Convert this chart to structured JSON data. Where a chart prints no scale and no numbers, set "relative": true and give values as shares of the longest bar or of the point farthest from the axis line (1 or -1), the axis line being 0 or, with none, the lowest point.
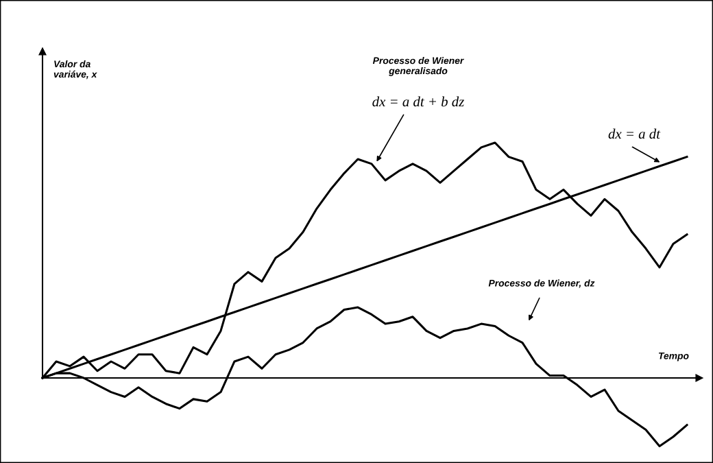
{
  "chart_data": {
    "type": "line",
    "relative": true,
    "xlabel": "Tempo",
    "categories": [
      null,
      null,
      null,
      null,
      null,
      null,
      null,
      null,
      null,
      null,
      null,
      null,
      null,
      null,
      null,
      null,
      null,
      null,
      null,
      null,
      null,
      null,
      null,
      null,
      null,
      null,
      null,
      null,
      null,
      null,
      null,
      null,
      null,
      null,
      null,
      null,
      null,
      null,
      null,
      null,
      null,
      null,
      null,
      null,
      null,
      null,
      null,
      null
    ],
    "series": [
      {
        "color": "#000000",
        "values": [
          0,
          0.07,
          0.05,
          0.09,
          0.03,
          0.07,
          0.04,
          0.1,
          0.1,
          0.03,
          0.02,
          0.13,
          0.1,
          0.2,
          0.4,
          0.45,
          0.41,
          0.51,
          0.55,
          0.62,
          0.72,
          0.8,
          0.87,
          0.93,
          0.91,
          0.84,
          0.88,
          0.91,
          0.88,
          0.83,
          0.88,
          0.93,
          0.98,
          1.0,
          0.94,
          0.92,
          0.8,
          0.76,
          0.8,
          0.74,
          0.69,
          0.76,
          0.71,
          0.62,
          0.55,
          0.47,
          0.57,
          0.61
        ]
      },
      {
        "color": "#000000",
        "values": [
          0,
          0.02,
          0.04,
          0.06,
          0.08,
          0.1,
          0.12,
          0.14,
          0.16,
          0.18,
          0.2,
          0.22,
          0.24,
          0.26,
          0.28,
          0.3,
          0.32,
          0.34,
          0.36,
          0.38,
          0.4,
          0.42,
          0.44,
          0.46,
          0.48,
          0.5,
          0.52,
          0.54,
          0.56,
          0.58,
          0.6,
          0.62,
          0.64,
          0.66,
          0.68,
          0.7,
          0.72,
          0.74,
          0.76,
          0.78,
          0.8,
          0.82,
          0.84,
          0.86,
          0.88,
          0.9,
          0.92,
          0.94
        ]
      },
      {
        "color": "#000000",
        "values": [
          0,
          0.02,
          0.02,
          0.0,
          -0.03,
          -0.06,
          -0.08,
          -0.04,
          -0.08,
          -0.11,
          -0.13,
          -0.09,
          -0.1,
          -0.06,
          0.07,
          0.09,
          0.04,
          0.1,
          0.12,
          0.15,
          0.21,
          0.24,
          0.29,
          0.3,
          0.27,
          0.23,
          0.24,
          0.26,
          0.2,
          0.17,
          0.2,
          0.21,
          0.23,
          0.22,
          0.18,
          0.15,
          0.06,
          0.01,
          0.01,
          -0.03,
          -0.08,
          -0.05,
          -0.14,
          -0.18,
          -0.22,
          -0.29,
          -0.25,
          -0.2
        ]
      }
    ],
    "annotations": [
      "Valor da\nvariáve, x",
      "Processo de Wiener\ngeneralisado",
      "dx = a dt + b dz",
      "dx = a dt",
      "Processo de Wiener, dz"
    ],
    "legend": false
  }
}
